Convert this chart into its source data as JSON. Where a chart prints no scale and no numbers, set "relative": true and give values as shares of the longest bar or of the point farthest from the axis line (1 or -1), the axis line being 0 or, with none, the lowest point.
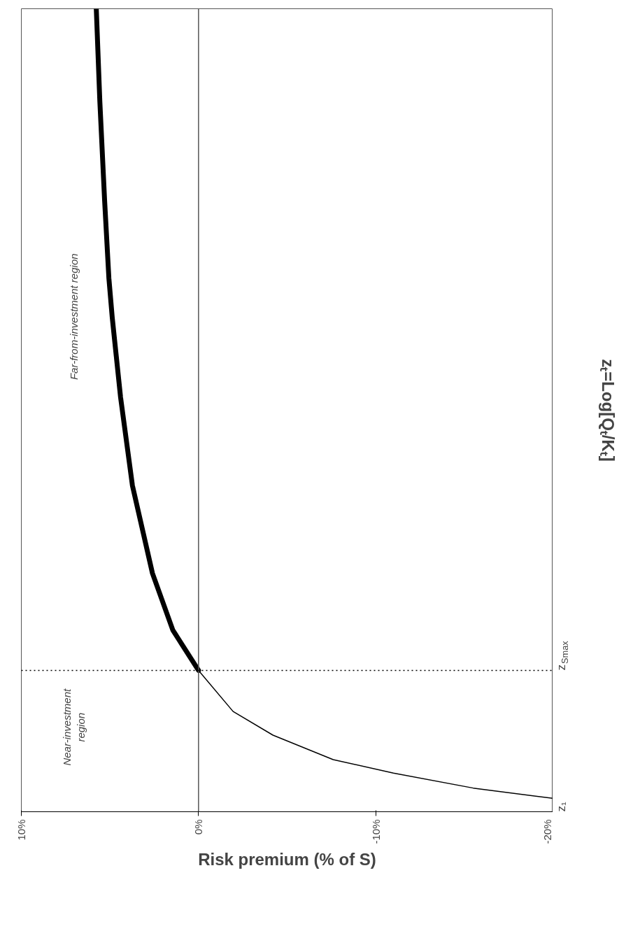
{
  "chart_data": {
    "type": "line",
    "xlabel": "Risk premium (% of S)",
    "ylabel": "zₜ=Log[Qₜ/Kₜ]",
    "xlim": [
      10,
      -20
    ],
    "xticks": [
      {
        "value": 10,
        "label": "10%"
      },
      {
        "value": 0,
        "label": "0%"
      },
      {
        "value": -10,
        "label": "-10%"
      },
      {
        "value": -20,
        "label": "-20%"
      }
    ],
    "relative": true,
    "grid": false,
    "series": [
      {
        "color": "#000000",
        "x": [
          -20,
          -15.5,
          -11.0,
          -7.6,
          -4.2,
          -1.95,
          0
        ],
        "values": [
          0,
          0.013,
          0.032,
          0.049,
          0.08,
          0.11,
          0.162
        ]
      },
      {
        "color": "#000000",
        "x": [
          0,
          1.45,
          2.6,
          3.73,
          4.4,
          4.87,
          5.06,
          5.3,
          5.57,
          5.77
        ],
        "values": [
          0.162,
          0.213,
          0.285,
          0.396,
          0.508,
          0.609,
          0.659,
          0.757,
          0.883,
          1.0
        ]
      }
    ],
    "ref_lines": [
      {
        "axis": "x",
        "value": 0,
        "color": "#555555",
        "line_style": "solid"
      },
      {
        "axis": "y",
        "value": 0.162,
        "color": "#000000",
        "line_style": "dotted",
        "label": "z$_{Smax}$"
      }
    ],
    "annotations": [
      "Far-from-investment region",
      "Near-investment region",
      "z₁"
    ]
  }
}
